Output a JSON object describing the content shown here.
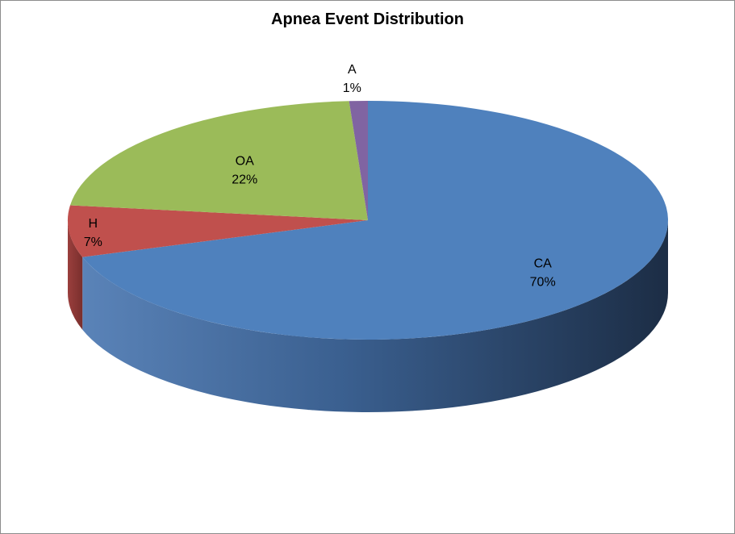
{
  "chart_data": {
    "type": "pie",
    "title": "Apnea Event Distribution",
    "categories": [
      "CA",
      "H",
      "OA",
      "A"
    ],
    "values": [
      70,
      7,
      22,
      1
    ],
    "value_labels": [
      "70%",
      "7%",
      "22%",
      "1%"
    ],
    "colors": [
      "#4F81BD",
      "#C0504D",
      "#9BBB59",
      "#8064A2"
    ],
    "legend": "none",
    "style": "3d"
  }
}
